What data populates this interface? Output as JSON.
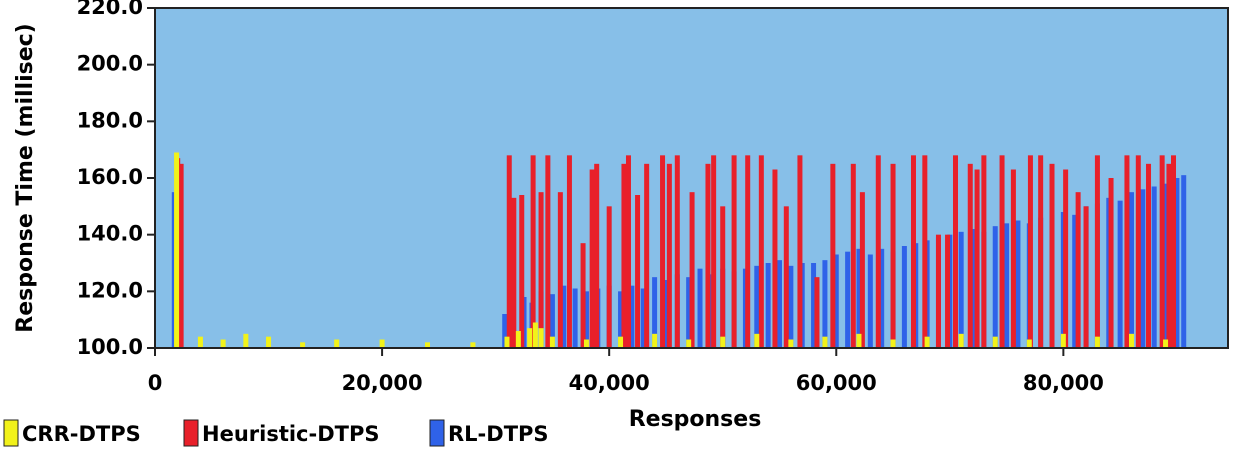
{
  "chart_data": {
    "type": "spike",
    "x_label": "Responses",
    "y_label": "Response Time (millisec)",
    "xlim": [
      0,
      94500
    ],
    "ylim": [
      100,
      220
    ],
    "xticks": [
      0,
      {
        "value": 20000,
        "label": "20,000"
      },
      {
        "value": 40000,
        "label": "40,000"
      },
      {
        "value": 60000,
        "label": "60,000"
      },
      {
        "value": 80000,
        "label": "80,000"
      }
    ],
    "yticks": [
      {
        "value": 100,
        "label": "100.0"
      },
      {
        "value": 120,
        "label": "120.0"
      },
      {
        "value": 140,
        "label": "140.0"
      },
      {
        "value": 160,
        "label": "160.0"
      },
      {
        "value": 180,
        "label": "180.0"
      },
      {
        "value": 200,
        "label": "200.0"
      },
      {
        "value": 220,
        "label": "220.0"
      }
    ],
    "background": "#87bfe8",
    "series": [
      {
        "name": "RL-DTPS",
        "color": "#2f62e8",
        "x": [
          1700,
          30800,
          31500,
          32500,
          33200,
          34000,
          35000,
          36000,
          37000,
          38000,
          39000,
          40000,
          41000,
          42000,
          43000,
          44000,
          45000,
          46000,
          47000,
          48000,
          49000,
          50000,
          51000,
          52000,
          53000,
          54000,
          55000,
          56000,
          57000,
          58000,
          59000,
          60000,
          61000,
          62000,
          63000,
          64000,
          65000,
          66000,
          67000,
          68000,
          69000,
          70000,
          71000,
          72000,
          73000,
          74000,
          75000,
          76000,
          77000,
          78000,
          79000,
          80000,
          81000,
          82000,
          83000,
          84000,
          85000,
          86000,
          87000,
          88000,
          89000,
          90000,
          90600
        ],
        "values": [
          155,
          112,
          117,
          118,
          116,
          120,
          119,
          122,
          121,
          120,
          121,
          122,
          120,
          122,
          121,
          125,
          124,
          126,
          125,
          128,
          126,
          128,
          127,
          128,
          129,
          130,
          131,
          129,
          130,
          130,
          131,
          133,
          134,
          135,
          133,
          135,
          134,
          136,
          137,
          138,
          139,
          140,
          141,
          142,
          141,
          143,
          144,
          145,
          144,
          146,
          147,
          148,
          147,
          150,
          151,
          153,
          152,
          155,
          156,
          157,
          158,
          160,
          161
        ]
      },
      {
        "name": "Heuristic-DTPS",
        "color": "#e8202a",
        "x": [
          2000,
          2300,
          31200,
          31600,
          32300,
          33300,
          34000,
          34600,
          35700,
          36500,
          37700,
          38500,
          38900,
          40000,
          41300,
          41700,
          42500,
          43300,
          44700,
          45300,
          46000,
          47300,
          48700,
          49200,
          50000,
          51000,
          52200,
          53400,
          54600,
          55600,
          56800,
          58300,
          59700,
          61500,
          62300,
          63700,
          65000,
          66800,
          67800,
          69000,
          69800,
          70500,
          71800,
          72400,
          73000,
          74600,
          75600,
          77100,
          78000,
          79000,
          80200,
          81300,
          82000,
          83000,
          84200,
          85600,
          86600,
          87500,
          88700,
          89300,
          89700
        ],
        "values": [
          167,
          165,
          168,
          153,
          154,
          168,
          155,
          168,
          155,
          168,
          137,
          163,
          165,
          150,
          165,
          168,
          154,
          165,
          168,
          165,
          168,
          155,
          165,
          168,
          150,
          168,
          168,
          168,
          163,
          150,
          168,
          125,
          165,
          165,
          155,
          168,
          165,
          168,
          168,
          140,
          140,
          168,
          165,
          163,
          168,
          168,
          163,
          168,
          168,
          165,
          163,
          155,
          150,
          168,
          160,
          168,
          168,
          165,
          168,
          165,
          168
        ]
      },
      {
        "name": "CRR-DTPS",
        "color": "#f2f21a",
        "x": [
          1900,
          4000,
          6000,
          8000,
          10000,
          13000,
          16000,
          20000,
          24000,
          28000,
          31000,
          32000,
          33000,
          33500,
          34000,
          35000,
          38000,
          41000,
          44000,
          47000,
          50000,
          53000,
          56000,
          59000,
          62000,
          65000,
          68000,
          71000,
          74000,
          77000,
          80000,
          83000,
          86000,
          89000
        ],
        "values": [
          169,
          104,
          103,
          105,
          104,
          102,
          103,
          103,
          102,
          102,
          104,
          106,
          107,
          109,
          107,
          104,
          103,
          104,
          105,
          103,
          104,
          105,
          103,
          104,
          105,
          103,
          104,
          105,
          104,
          103,
          105,
          104,
          105,
          103
        ]
      }
    ],
    "legend_order": [
      2,
      1,
      0
    ]
  }
}
